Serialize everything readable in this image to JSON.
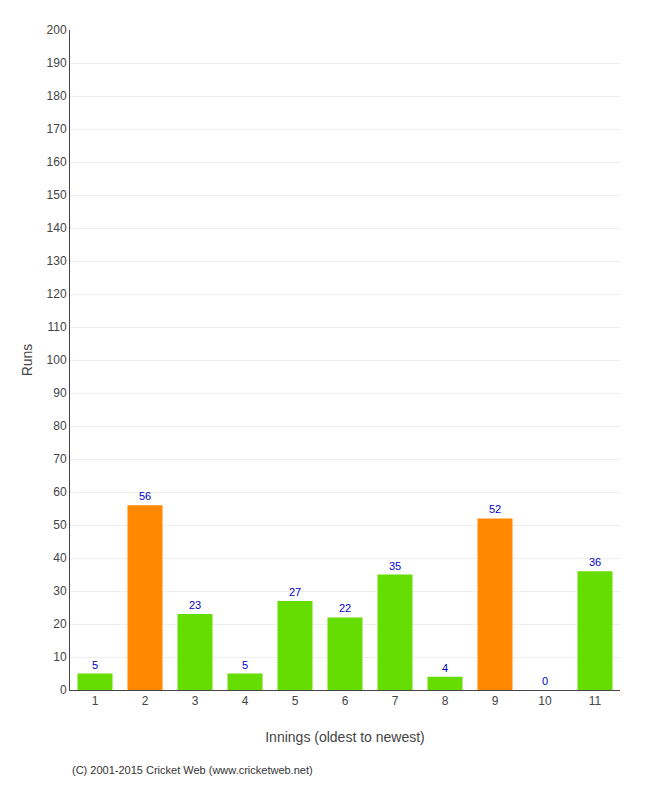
{
  "chart_data": {
    "type": "bar",
    "xlabel": "Innings (oldest to newest)",
    "ylabel": "Runs",
    "categories": [
      "1",
      "2",
      "3",
      "4",
      "5",
      "6",
      "7",
      "8",
      "9",
      "10",
      "11"
    ],
    "values": [
      5,
      56,
      23,
      5,
      27,
      22,
      35,
      4,
      52,
      0,
      36
    ],
    "colors": [
      "#66dd00",
      "#ff8800",
      "#66dd00",
      "#66dd00",
      "#66dd00",
      "#66dd00",
      "#66dd00",
      "#66dd00",
      "#ff8800",
      "#66dd00",
      "#66dd00"
    ],
    "ylim": [
      0,
      200
    ],
    "yticks": [
      0,
      10,
      20,
      30,
      40,
      50,
      60,
      70,
      80,
      90,
      100,
      110,
      120,
      130,
      140,
      150,
      160,
      170,
      180,
      190,
      200
    ],
    "grid": true,
    "data_labels": true,
    "annotations": [
      "(C) 2001-2015 Cricket Web (www.cricketweb.net)"
    ]
  }
}
